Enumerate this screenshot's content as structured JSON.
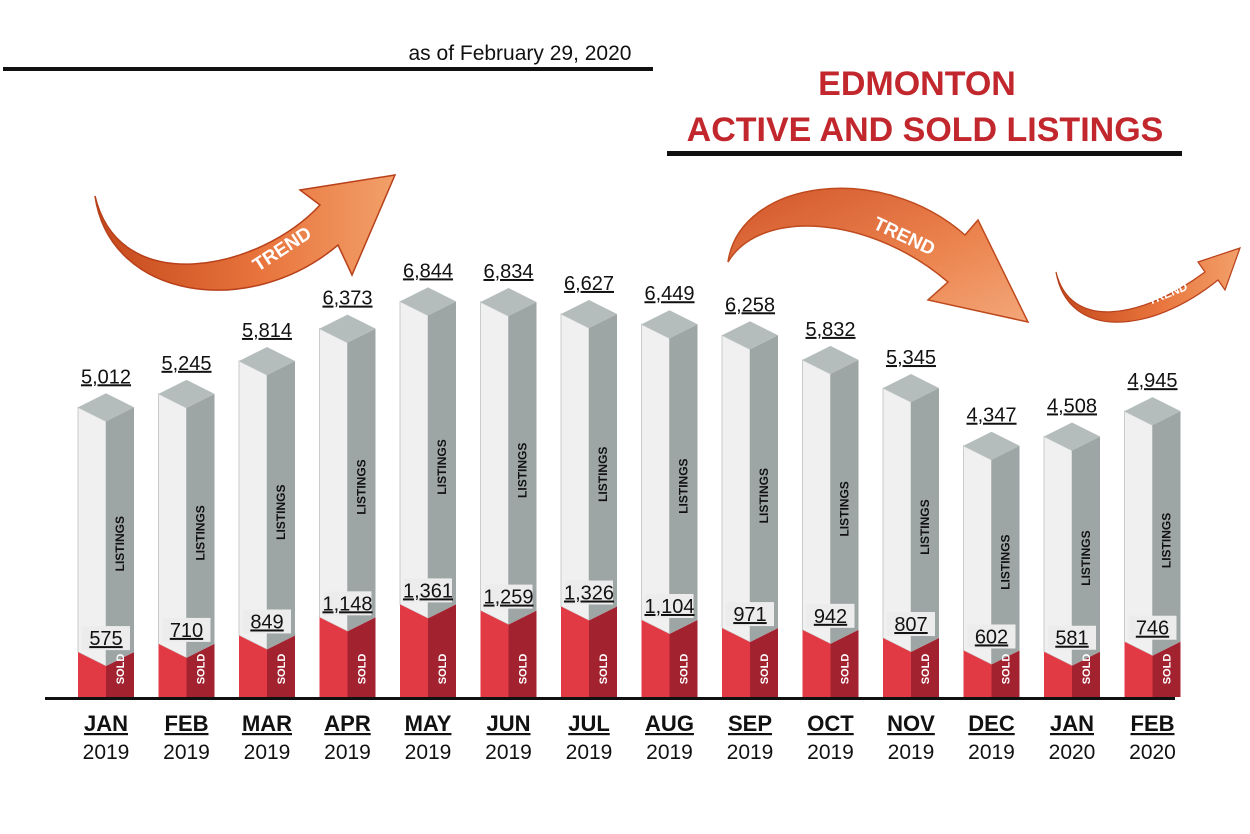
{
  "header": {
    "date_note": "as of February 29, 2020",
    "title_line1": "EDMONTON",
    "title_line2": "ACTIVE AND SOLD LISTINGS"
  },
  "trend_label": "TREND",
  "colors": {
    "title_red": "#c1272d",
    "sold_red": "#e23a44",
    "sold_red_dark": "#a32230",
    "listings_light": "#f0f0f0",
    "listings_dark": "#9ea5a5",
    "arrow_orange": "#e8743c"
  },
  "chart_data": {
    "type": "bar",
    "categories": [
      {
        "month": "JAN",
        "year": "2019"
      },
      {
        "month": "FEB",
        "year": "2019"
      },
      {
        "month": "MAR",
        "year": "2019"
      },
      {
        "month": "APR",
        "year": "2019"
      },
      {
        "month": "MAY",
        "year": "2019"
      },
      {
        "month": "JUN",
        "year": "2019"
      },
      {
        "month": "JUL",
        "year": "2019"
      },
      {
        "month": "AUG",
        "year": "2019"
      },
      {
        "month": "SEP",
        "year": "2019"
      },
      {
        "month": "OCT",
        "year": "2019"
      },
      {
        "month": "NOV",
        "year": "2019"
      },
      {
        "month": "DEC",
        "year": "2019"
      },
      {
        "month": "JAN",
        "year": "2020"
      },
      {
        "month": "FEB",
        "year": "2020"
      }
    ],
    "series": [
      {
        "name": "LISTINGS",
        "values": [
          5012,
          5245,
          5814,
          6373,
          6844,
          6834,
          6627,
          6449,
          6258,
          5832,
          5345,
          4347,
          4508,
          4945
        ]
      },
      {
        "name": "SOLD",
        "values": [
          575,
          710,
          849,
          1148,
          1361,
          1259,
          1326,
          1104,
          971,
          942,
          807,
          602,
          581,
          746
        ]
      }
    ],
    "trend_arrows": [
      "up",
      "down",
      "up"
    ]
  }
}
